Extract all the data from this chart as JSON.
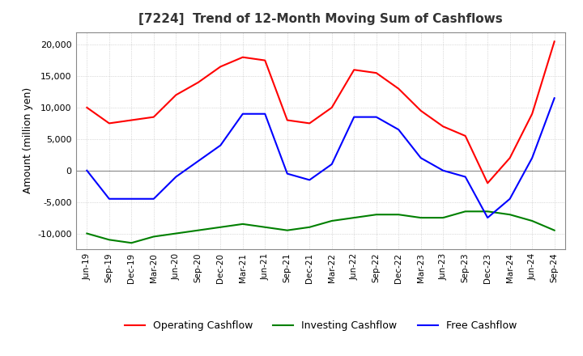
{
  "title": "[7224]  Trend of 12-Month Moving Sum of Cashflows",
  "ylabel": "Amount (million yen)",
  "ylim": [
    -12500,
    22000
  ],
  "yticks": [
    -10000,
    -5000,
    0,
    5000,
    10000,
    15000,
    20000
  ],
  "background_color": "#ffffff",
  "grid_color": "#aaaaaa",
  "dates": [
    "Jun-19",
    "Sep-19",
    "Dec-19",
    "Mar-20",
    "Jun-20",
    "Sep-20",
    "Dec-20",
    "Mar-21",
    "Jun-21",
    "Sep-21",
    "Dec-21",
    "Mar-22",
    "Jun-22",
    "Sep-22",
    "Dec-22",
    "Mar-23",
    "Jun-23",
    "Sep-23",
    "Dec-23",
    "Mar-24",
    "Jun-24",
    "Sep-24"
  ],
  "operating": [
    10000,
    7500,
    8000,
    8500,
    12000,
    14000,
    16500,
    18000,
    17500,
    8000,
    7500,
    10000,
    16000,
    15500,
    13000,
    9500,
    7000,
    5500,
    -2000,
    2000,
    9000,
    20500
  ],
  "investing": [
    -10000,
    -11000,
    -11500,
    -10500,
    -10000,
    -9500,
    -9000,
    -8500,
    -9000,
    -9500,
    -9000,
    -8000,
    -7500,
    -7000,
    -7000,
    -7500,
    -7500,
    -6500,
    -6500,
    -7000,
    -8000,
    -9500
  ],
  "free": [
    0,
    -4500,
    -4500,
    -4500,
    -1000,
    1500,
    4000,
    9000,
    9000,
    -500,
    -1500,
    1000,
    8500,
    8500,
    6500,
    2000,
    0,
    -1000,
    -7500,
    -4500,
    2000,
    11500
  ],
  "operating_color": "#ff0000",
  "investing_color": "#008000",
  "free_color": "#0000ff",
  "legend_labels": [
    "Operating Cashflow",
    "Investing Cashflow",
    "Free Cashflow"
  ]
}
